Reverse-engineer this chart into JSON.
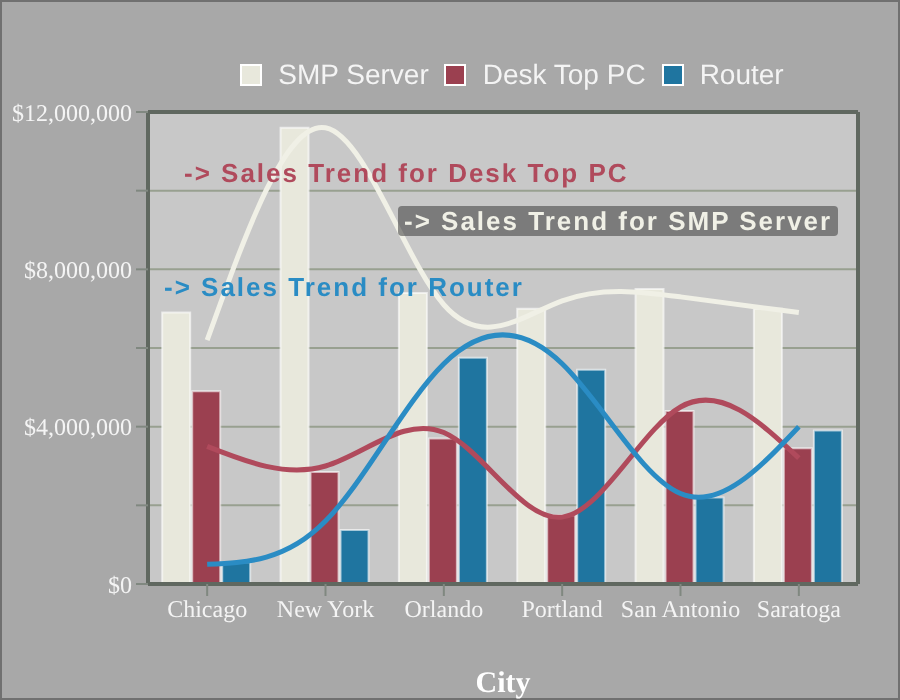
{
  "chart_data": {
    "type": "bar",
    "xlabel": "City",
    "categories": [
      "Chicago",
      "New York",
      "Orlando",
      "Portland",
      "San Antonio",
      "Saratoga"
    ],
    "series": [
      {
        "name": "SMP Server",
        "color": "#e8e8dc",
        "values": [
          6900000,
          11600000,
          7400000,
          7000000,
          7500000,
          7000000
        ]
      },
      {
        "name": "Desk Top PC",
        "color": "#9b4050",
        "values": [
          4900000,
          2850000,
          3700000,
          1750000,
          4400000,
          3450000
        ]
      },
      {
        "name": "Router",
        "color": "#1f75a0",
        "values": [
          550000,
          1370000,
          5750000,
          5450000,
          2200000,
          3900000
        ]
      },
      {
        "name": "-> Sales Trend for SMP Server",
        "type": "line",
        "color": "#f0f0e6",
        "values": [
          6200000,
          11600000,
          7100000,
          7200000,
          7300000,
          6900000
        ]
      },
      {
        "name": "-> Sales Trend for Desk Top PC",
        "type": "line",
        "color": "#b04a5c",
        "values": [
          3500000,
          3000000,
          3850000,
          1700000,
          4500000,
          3200000
        ]
      },
      {
        "name": "-> Sales Trend for Router",
        "type": "line",
        "color": "#2a8cc4",
        "values": [
          500000,
          1600000,
          5600000,
          5600000,
          2300000,
          4000000
        ]
      }
    ],
    "ylim": [
      0,
      12000000
    ],
    "yticks": [
      {
        "value": 0,
        "label": "$0"
      },
      {
        "value": 2000000,
        "label": null
      },
      {
        "value": 4000000,
        "label": "$4,000,000"
      },
      {
        "value": 6000000,
        "label": null
      },
      {
        "value": 8000000,
        "label": "$8,000,000"
      },
      {
        "value": 10000000,
        "label": null
      },
      {
        "value": 12000000,
        "label": "$12,000,000"
      }
    ],
    "grid": "y",
    "legend": "top"
  }
}
